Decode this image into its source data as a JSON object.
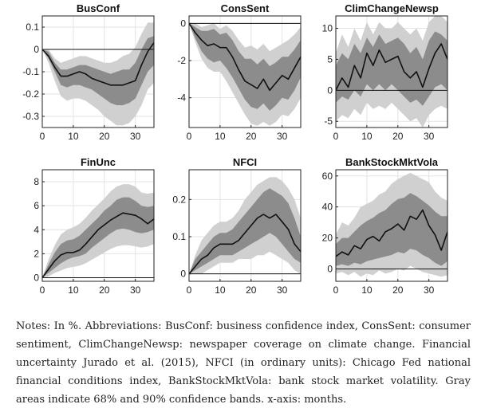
{
  "chart_data": [
    {
      "type": "line",
      "title": "BusConf",
      "xlim": [
        0,
        36
      ],
      "xticks": [
        0,
        10,
        20,
        30
      ],
      "ylim": [
        -0.35,
        0.15
      ],
      "yticks": [
        0.1,
        0,
        -0.1,
        -0.2,
        -0.3
      ],
      "ytick_labels": [
        "0.1",
        "0",
        "-0.1",
        "-0.2",
        "-0.3"
      ],
      "zero_line": true,
      "x": [
        0,
        2,
        4,
        6,
        8,
        10,
        12,
        14,
        16,
        18,
        20,
        22,
        24,
        26,
        28,
        30,
        32,
        34,
        36
      ],
      "series": [
        {
          "role": "90% confidence band",
          "lower": [
            0,
            -0.06,
            -0.14,
            -0.21,
            -0.23,
            -0.22,
            -0.22,
            -0.23,
            -0.25,
            -0.27,
            -0.3,
            -0.32,
            -0.34,
            -0.34,
            -0.33,
            -0.3,
            -0.25,
            -0.18,
            -0.15
          ],
          "upper": [
            0,
            0.0,
            -0.04,
            -0.06,
            -0.05,
            -0.04,
            -0.03,
            -0.03,
            -0.04,
            -0.05,
            -0.06,
            -0.06,
            -0.05,
            -0.03,
            -0.02,
            0.01,
            0.07,
            0.12,
            0.12
          ]
        },
        {
          "role": "68% confidence band",
          "lower": [
            0,
            -0.04,
            -0.1,
            -0.16,
            -0.17,
            -0.16,
            -0.16,
            -0.17,
            -0.18,
            -0.2,
            -0.22,
            -0.24,
            -0.25,
            -0.25,
            -0.24,
            -0.22,
            -0.16,
            -0.1,
            -0.07
          ],
          "upper": [
            0,
            -0.01,
            -0.06,
            -0.09,
            -0.09,
            -0.08,
            -0.07,
            -0.07,
            -0.08,
            -0.09,
            -0.1,
            -0.11,
            -0.1,
            -0.09,
            -0.09,
            -0.06,
            0.0,
            0.05,
            0.06
          ]
        },
        {
          "role": "impulse response",
          "values": [
            0,
            -0.03,
            -0.08,
            -0.12,
            -0.12,
            -0.11,
            -0.1,
            -0.11,
            -0.13,
            -0.14,
            -0.15,
            -0.16,
            -0.16,
            -0.16,
            -0.15,
            -0.14,
            -0.07,
            -0.01,
            0.03
          ]
        }
      ]
    },
    {
      "type": "line",
      "title": "ConsSent",
      "xlim": [
        0,
        36
      ],
      "xticks": [
        0,
        10,
        20,
        30
      ],
      "ylim": [
        -5.6,
        0.4
      ],
      "yticks": [
        0,
        -2,
        -4
      ],
      "ytick_labels": [
        "0",
        "-2",
        "-4"
      ],
      "zero_line": true,
      "x": [
        0,
        2,
        4,
        6,
        8,
        10,
        12,
        14,
        16,
        18,
        20,
        22,
        24,
        26,
        28,
        30,
        32,
        34,
        36
      ],
      "series": [
        {
          "role": "90% confidence band",
          "lower": [
            0,
            -1.0,
            -1.9,
            -2.4,
            -2.6,
            -2.6,
            -3.1,
            -3.7,
            -4.3,
            -4.9,
            -5.4,
            -5.5,
            -5.3,
            -5.5,
            -5.3,
            -4.9,
            -5.0,
            -4.6,
            -4.0
          ],
          "upper": [
            0,
            0.0,
            -0.2,
            -0.1,
            0.0,
            -0.3,
            -0.1,
            -0.4,
            -0.9,
            -1.3,
            -1.2,
            -1.4,
            -1.1,
            -1.5,
            -1.3,
            -1.1,
            -0.9,
            -0.6,
            -0.2
          ]
        },
        {
          "role": "68% confidence band",
          "lower": [
            0,
            -0.8,
            -1.5,
            -1.9,
            -2.1,
            -2.0,
            -2.4,
            -2.9,
            -3.5,
            -4.1,
            -4.5,
            -4.6,
            -4.3,
            -4.7,
            -4.4,
            -4.0,
            -4.1,
            -3.6,
            -2.9
          ],
          "upper": [
            0,
            -0.2,
            -0.4,
            -0.4,
            -0.3,
            -0.6,
            -0.5,
            -0.9,
            -1.5,
            -1.9,
            -1.9,
            -2.2,
            -1.9,
            -2.3,
            -2.1,
            -1.8,
            -1.8,
            -1.4,
            -0.9
          ]
        },
        {
          "role": "impulse response",
          "values": [
            0,
            -0.5,
            -0.9,
            -1.2,
            -1.1,
            -1.3,
            -1.3,
            -1.8,
            -2.5,
            -3.1,
            -3.3,
            -3.5,
            -3.0,
            -3.6,
            -3.2,
            -2.8,
            -3.0,
            -2.4,
            -1.8
          ]
        }
      ]
    },
    {
      "type": "line",
      "title": "ClimChangeNewsp",
      "xlim": [
        0,
        36
      ],
      "xticks": [
        0,
        10,
        20,
        30
      ],
      "ylim": [
        -6,
        12
      ],
      "yticks": [
        10,
        5,
        0,
        -5
      ],
      "ytick_labels": [
        "10",
        "5",
        "0",
        "-5"
      ],
      "zero_line": true,
      "x": [
        0,
        2,
        4,
        6,
        8,
        10,
        12,
        14,
        16,
        18,
        20,
        22,
        24,
        26,
        28,
        30,
        32,
        34,
        36
      ],
      "series": [
        {
          "role": "90% confidence band",
          "lower": [
            -5,
            -4,
            -4.5,
            -3,
            -4,
            -2,
            -3,
            -2.5,
            -3,
            -2,
            -3,
            -4,
            -5,
            -4.5,
            -6,
            -4,
            -3,
            -2.5,
            -3
          ],
          "upper": [
            6,
            9,
            7,
            10,
            8,
            11,
            9,
            11,
            10,
            10,
            11,
            10,
            9,
            10,
            8,
            11,
            12,
            12,
            11
          ]
        },
        {
          "role": "68% confidence band",
          "lower": [
            -2,
            -1,
            -1.5,
            0,
            -1,
            1,
            0,
            1,
            0,
            1,
            0,
            -1,
            -2,
            -1.5,
            -2.5,
            -1,
            0.5,
            1,
            0
          ]
        },
        {
          "role": "68% confidence band",
          "upper": [
            4,
            6,
            5,
            7.5,
            6,
            8.5,
            7,
            9,
            7.5,
            8,
            8.5,
            7.5,
            6,
            7,
            5,
            8,
            9.5,
            9,
            8
          ]
        },
        {
          "role": "impulse response",
          "values": [
            0,
            2,
            0.5,
            4,
            2,
            6,
            4,
            6.5,
            4.5,
            5,
            5.5,
            3,
            2,
            3,
            0.5,
            3.5,
            6,
            7.5,
            5
          ]
        }
      ]
    },
    {
      "type": "line",
      "title": "FinUnc",
      "xlim": [
        0,
        36
      ],
      "xticks": [
        0,
        10,
        20,
        30
      ],
      "ylim": [
        -0.3,
        9
      ],
      "yticks": [
        8,
        6,
        4,
        2,
        0
      ],
      "ytick_labels": [
        "8",
        "6",
        "4",
        "2",
        "0"
      ],
      "zero_line": true,
      "x": [
        0,
        2,
        4,
        6,
        8,
        10,
        12,
        14,
        16,
        18,
        20,
        22,
        24,
        26,
        28,
        30,
        32,
        34,
        36
      ],
      "series": [
        {
          "role": "90% confidence band",
          "lower": [
            0,
            0.1,
            0.4,
            0.6,
            0.8,
            0.9,
            1.0,
            1.2,
            1.5,
            1.8,
            2.1,
            2.4,
            2.6,
            2.7,
            2.7,
            2.6,
            2.5,
            2.6,
            2.8
          ]
        },
        {
          "role": "90% confidence band",
          "upper": [
            0,
            1.5,
            2.7,
            3.6,
            4.0,
            4.2,
            4.5,
            5.0,
            5.6,
            6.1,
            6.6,
            7.2,
            7.6,
            7.8,
            7.8,
            7.6,
            7.1,
            7.0,
            7.1
          ]
        },
        {
          "role": "68% confidence band",
          "lower": [
            0,
            0.4,
            0.8,
            1.2,
            1.5,
            1.7,
            1.8,
            2.0,
            2.5,
            2.9,
            3.3,
            3.7,
            4.0,
            4.1,
            4.0,
            3.8,
            3.7,
            3.8,
            4.0
          ],
          "upper": [
            0,
            1.1,
            2.1,
            2.8,
            3.1,
            3.2,
            3.5,
            4.0,
            4.5,
            5.0,
            5.6,
            6.0,
            6.5,
            6.7,
            6.7,
            6.4,
            6.0,
            5.9,
            6.0
          ]
        },
        {
          "role": "impulse response",
          "values": [
            0,
            0.7,
            1.4,
            1.9,
            2.1,
            2.1,
            2.3,
            2.8,
            3.4,
            4.0,
            4.4,
            4.8,
            5.1,
            5.4,
            5.3,
            5.2,
            4.9,
            4.5,
            4.9
          ]
        }
      ]
    },
    {
      "type": "line",
      "title": "NFCI",
      "xlim": [
        0,
        36
      ],
      "xticks": [
        0,
        10,
        20,
        30
      ],
      "ylim": [
        -0.02,
        0.28
      ],
      "yticks": [
        0.2,
        0.1,
        0
      ],
      "ytick_labels": [
        "0.2",
        "0.1",
        "0"
      ],
      "zero_line": true,
      "x": [
        0,
        2,
        4,
        6,
        8,
        10,
        12,
        14,
        16,
        18,
        20,
        22,
        24,
        26,
        28,
        30,
        32,
        34,
        36
      ],
      "series": [
        {
          "role": "90% confidence band",
          "lower": [
            0,
            0.0,
            0.0,
            0.01,
            0.02,
            0.03,
            0.03,
            0.03,
            0.04,
            0.04,
            0.04,
            0.05,
            0.05,
            0.06,
            0.05,
            0.04,
            0.03,
            0.01,
            0.0
          ],
          "upper": [
            0,
            0.05,
            0.09,
            0.11,
            0.13,
            0.14,
            0.14,
            0.15,
            0.17,
            0.2,
            0.22,
            0.24,
            0.25,
            0.26,
            0.26,
            0.25,
            0.23,
            0.2,
            0.15
          ]
        },
        {
          "role": "68% confidence band",
          "lower": [
            0,
            0.01,
            0.02,
            0.03,
            0.04,
            0.05,
            0.05,
            0.05,
            0.06,
            0.07,
            0.08,
            0.09,
            0.1,
            0.11,
            0.1,
            0.08,
            0.06,
            0.04,
            0.03
          ],
          "upper": [
            0,
            0.04,
            0.06,
            0.08,
            0.1,
            0.11,
            0.11,
            0.12,
            0.14,
            0.16,
            0.18,
            0.2,
            0.22,
            0.23,
            0.22,
            0.21,
            0.19,
            0.15,
            0.1
          ]
        },
        {
          "role": "impulse response",
          "values": [
            0,
            0.02,
            0.04,
            0.05,
            0.07,
            0.08,
            0.08,
            0.08,
            0.09,
            0.11,
            0.13,
            0.15,
            0.16,
            0.15,
            0.16,
            0.14,
            0.12,
            0.08,
            0.06
          ]
        }
      ]
    },
    {
      "type": "line",
      "title": "BankStockMktVola",
      "xlim": [
        0,
        36
      ],
      "xticks": [
        0,
        10,
        20,
        30
      ],
      "ylim": [
        -8,
        64
      ],
      "yticks": [
        60,
        40,
        20,
        0
      ],
      "ytick_labels": [
        "60",
        "40",
        "20",
        "0"
      ],
      "zero_line": true,
      "x": [
        0,
        2,
        4,
        6,
        8,
        10,
        12,
        14,
        16,
        18,
        20,
        22,
        24,
        26,
        28,
        30,
        32,
        34,
        36
      ],
      "series": [
        {
          "role": "90% confidence band",
          "lower": [
            -3,
            -2,
            -4,
            -2,
            -5,
            -3,
            -4,
            -1,
            -3,
            -2,
            0,
            -1,
            2,
            0,
            -2,
            -3,
            -4,
            -5,
            -4
          ],
          "upper": [
            22,
            30,
            28,
            33,
            40,
            42,
            44,
            48,
            50,
            55,
            58,
            60,
            62,
            60,
            58,
            56,
            50,
            46,
            44
          ]
        },
        {
          "role": "68% confidence band",
          "lower": [
            2,
            3,
            2,
            4,
            3,
            5,
            6,
            7,
            8,
            9,
            11,
            10,
            13,
            12,
            9,
            7,
            4,
            2,
            5
          ],
          "upper": [
            16,
            20,
            20,
            24,
            28,
            31,
            33,
            36,
            38,
            42,
            45,
            46,
            49,
            47,
            44,
            41,
            37,
            34,
            34
          ]
        },
        {
          "role": "impulse response",
          "values": [
            8,
            11,
            9,
            15,
            13,
            19,
            21,
            18,
            24,
            26,
            29,
            25,
            34,
            32,
            38,
            28,
            22,
            12,
            24
          ]
        }
      ]
    }
  ],
  "notes": "Notes: In %. Abbreviations: BusConf: business confidence index, ConsSent: consumer sentiment, ClimChangeNewsp: newspaper coverage on climate change. Financial uncertainty Jurado et al. (2015), NFCI (in ordinary units): Chicago Fed national financial conditions index, BankStockMktVola: bank stock market volatility. Gray areas indicate 68% and 90% confidence bands. x-axis: months."
}
